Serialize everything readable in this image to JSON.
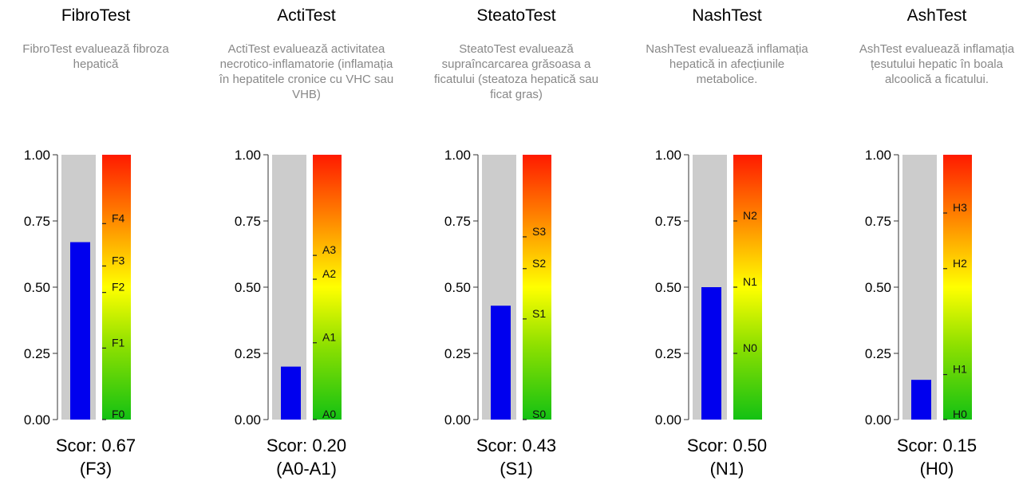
{
  "score_label": "Scor:",
  "chart_data": [
    {
      "type": "bar",
      "title": "FibroTest",
      "description": "FibroTest evaluează fibroza hepatică",
      "ylim": [
        0,
        1
      ],
      "yticks": [
        "0.00",
        "0.25",
        "0.50",
        "0.75",
        "1.00"
      ],
      "value": 0.67,
      "score_text": "0.67",
      "stage": "(F3)",
      "stages": [
        {
          "label": "F0",
          "value": 0.0
        },
        {
          "label": "F1",
          "value": 0.27
        },
        {
          "label": "F2",
          "value": 0.48
        },
        {
          "label": "F3",
          "value": 0.58
        },
        {
          "label": "F4",
          "value": 0.74
        }
      ]
    },
    {
      "type": "bar",
      "title": "ActiTest",
      "description": "ActiTest evaluează activitatea necrotico-inflamatorie (inflamația în hepatitele cronice cu VHC sau VHB)",
      "ylim": [
        0,
        1
      ],
      "yticks": [
        "0.00",
        "0.25",
        "0.50",
        "0.75",
        "1.00"
      ],
      "value": 0.2,
      "score_text": "0.20",
      "stage": "(A0-A1)",
      "stages": [
        {
          "label": "A0",
          "value": 0.0
        },
        {
          "label": "A1",
          "value": 0.29
        },
        {
          "label": "A2",
          "value": 0.53
        },
        {
          "label": "A3",
          "value": 0.62
        }
      ]
    },
    {
      "type": "bar",
      "title": "SteatoTest",
      "description": "SteatoTest evaluează supraîncarcarea grăsoasa a ficatului (steatoza hepatică sau ficat gras)",
      "ylim": [
        0,
        1
      ],
      "yticks": [
        "0.00",
        "0.25",
        "0.50",
        "0.75",
        "1.00"
      ],
      "value": 0.43,
      "score_text": "0.43",
      "stage": "(S1)",
      "stages": [
        {
          "label": "S0",
          "value": 0.0
        },
        {
          "label": "S1",
          "value": 0.38
        },
        {
          "label": "S2",
          "value": 0.57
        },
        {
          "label": "S3",
          "value": 0.69
        }
      ]
    },
    {
      "type": "bar",
      "title": "NashTest",
      "description": "NashTest evaluează inflamația hepatică in afecțiunile metabolice.",
      "ylim": [
        0,
        1
      ],
      "yticks": [
        "0.00",
        "0.25",
        "0.50",
        "0.75",
        "1.00"
      ],
      "value": 0.5,
      "score_text": "0.50",
      "stage": "(N1)",
      "stages": [
        {
          "label": "N0",
          "value": 0.25
        },
        {
          "label": "N1",
          "value": 0.5
        },
        {
          "label": "N2",
          "value": 0.75
        }
      ]
    },
    {
      "type": "bar",
      "title": "AshTest",
      "description": "AshTest evaluează inflamația țesutului hepatic în boala alcoolică a ficatului.",
      "ylim": [
        0,
        1
      ],
      "yticks": [
        "0.00",
        "0.25",
        "0.50",
        "0.75",
        "1.00"
      ],
      "value": 0.15,
      "score_text": "0.15",
      "stage": "(H0)",
      "stages": [
        {
          "label": "H0",
          "value": 0.0
        },
        {
          "label": "H1",
          "value": 0.17
        },
        {
          "label": "H2",
          "value": 0.57
        },
        {
          "label": "H3",
          "value": 0.78
        }
      ]
    }
  ]
}
